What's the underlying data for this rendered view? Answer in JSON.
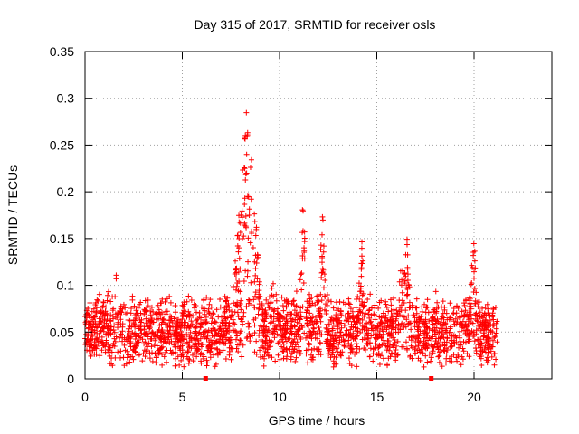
{
  "chart_data": {
    "type": "scatter",
    "title": "Day 315 of 2017, SRMTID for receiver osls",
    "xlabel": "GPS time / hours",
    "ylabel": "SRMTID / TECUs",
    "xlim": [
      0,
      24
    ],
    "ylim": [
      0,
      0.35
    ],
    "grid": true,
    "marker": "+",
    "color": "#ff0000",
    "x_ticks": [
      {
        "value": 0,
        "label": "0"
      },
      {
        "value": 5,
        "label": "5"
      },
      {
        "value": 10,
        "label": "10"
      },
      {
        "value": 15,
        "label": "15"
      },
      {
        "value": 20,
        "label": "20"
      }
    ],
    "y_ticks": [
      {
        "value": 0,
        "label": "0"
      },
      {
        "value": 0.05,
        "label": "0.05"
      },
      {
        "value": 0.1,
        "label": "0.1"
      },
      {
        "value": 0.15,
        "label": "0.15"
      },
      {
        "value": 0.2,
        "label": "0.2"
      },
      {
        "value": 0.25,
        "label": "0.25"
      },
      {
        "value": 0.3,
        "label": "0.3"
      },
      {
        "value": 0.35,
        "label": "0.35"
      }
    ],
    "series": [
      {
        "name": "SRMTID",
        "x_range": [
          0,
          21.2
        ],
        "description_points": [
          [
            0.0,
            0.05
          ],
          [
            0.2,
            0.07
          ],
          [
            0.4,
            0.06
          ],
          [
            0.6,
            0.045
          ],
          [
            0.8,
            0.08
          ],
          [
            1.0,
            0.065
          ],
          [
            1.2,
            0.09
          ],
          [
            1.4,
            0.055
          ],
          [
            1.6,
            0.11
          ],
          [
            1.8,
            0.07
          ],
          [
            2.0,
            0.04
          ],
          [
            2.2,
            0.03
          ],
          [
            2.4,
            0.06
          ],
          [
            2.6,
            0.05
          ],
          [
            2.8,
            0.035
          ],
          [
            3.0,
            0.045
          ],
          [
            3.2,
            0.07
          ],
          [
            3.4,
            0.055
          ],
          [
            3.6,
            0.08
          ],
          [
            3.8,
            0.045
          ],
          [
            4.0,
            0.06
          ],
          [
            4.2,
            0.05
          ],
          [
            4.4,
            0.1
          ],
          [
            4.6,
            0.04
          ],
          [
            4.8,
            0.035
          ],
          [
            5.0,
            0.045
          ],
          [
            5.2,
            0.06
          ],
          [
            5.4,
            0.04
          ],
          [
            5.6,
            0.055
          ],
          [
            5.8,
            0.045
          ],
          [
            6.0,
            0.05
          ],
          [
            6.2,
            0.035
          ],
          [
            6.4,
            0.06
          ],
          [
            6.6,
            0.045
          ],
          [
            6.8,
            0.04
          ],
          [
            7.0,
            0.05
          ],
          [
            7.2,
            0.07
          ],
          [
            7.4,
            0.09
          ],
          [
            7.6,
            0.1
          ],
          [
            7.8,
            0.14
          ],
          [
            8.0,
            0.19
          ],
          [
            8.2,
            0.25
          ],
          [
            8.3,
            0.3
          ],
          [
            8.4,
            0.27
          ],
          [
            8.6,
            0.22
          ],
          [
            8.8,
            0.16
          ],
          [
            9.0,
            0.09
          ],
          [
            9.2,
            0.07
          ],
          [
            9.4,
            0.085
          ],
          [
            9.6,
            0.12
          ],
          [
            9.8,
            0.09
          ],
          [
            10.0,
            0.065
          ],
          [
            10.2,
            0.08
          ],
          [
            10.4,
            0.06
          ],
          [
            10.6,
            0.07
          ],
          [
            10.8,
            0.09
          ],
          [
            11.0,
            0.06
          ],
          [
            11.2,
            0.195
          ],
          [
            11.4,
            0.09
          ],
          [
            11.6,
            0.07
          ],
          [
            11.8,
            0.08
          ],
          [
            12.0,
            0.065
          ],
          [
            12.2,
            0.18
          ],
          [
            12.4,
            0.085
          ],
          [
            12.6,
            0.07
          ],
          [
            12.8,
            0.06
          ],
          [
            13.0,
            0.075
          ],
          [
            13.2,
            0.05
          ],
          [
            13.4,
            0.06
          ],
          [
            13.6,
            0.04
          ],
          [
            13.8,
            0.03
          ],
          [
            14.0,
            0.07
          ],
          [
            14.2,
            0.15
          ],
          [
            14.4,
            0.09
          ],
          [
            14.6,
            0.06
          ],
          [
            14.8,
            0.05
          ],
          [
            15.0,
            0.045
          ],
          [
            15.2,
            0.04
          ],
          [
            15.4,
            0.06
          ],
          [
            15.6,
            0.05
          ],
          [
            15.8,
            0.07
          ],
          [
            16.0,
            0.09
          ],
          [
            16.2,
            0.11
          ],
          [
            16.4,
            0.12
          ],
          [
            16.6,
            0.15
          ],
          [
            16.8,
            0.07
          ],
          [
            17.0,
            0.06
          ],
          [
            17.2,
            0.05
          ],
          [
            17.4,
            0.045
          ],
          [
            17.6,
            0.04
          ],
          [
            17.8,
            0.05
          ],
          [
            18.0,
            0.1
          ],
          [
            18.2,
            0.06
          ],
          [
            18.4,
            0.05
          ],
          [
            18.6,
            0.045
          ],
          [
            18.8,
            0.04
          ],
          [
            19.0,
            0.05
          ],
          [
            19.2,
            0.035
          ],
          [
            19.4,
            0.04
          ],
          [
            19.6,
            0.07
          ],
          [
            19.8,
            0.11
          ],
          [
            20.0,
            0.15
          ],
          [
            20.2,
            0.08
          ],
          [
            20.4,
            0.05
          ],
          [
            20.6,
            0.04
          ],
          [
            20.8,
            0.06
          ],
          [
            21.0,
            0.07
          ],
          [
            21.2,
            0.05
          ]
        ]
      }
    ],
    "markers_on_axis": [
      6.2,
      17.8
    ]
  }
}
